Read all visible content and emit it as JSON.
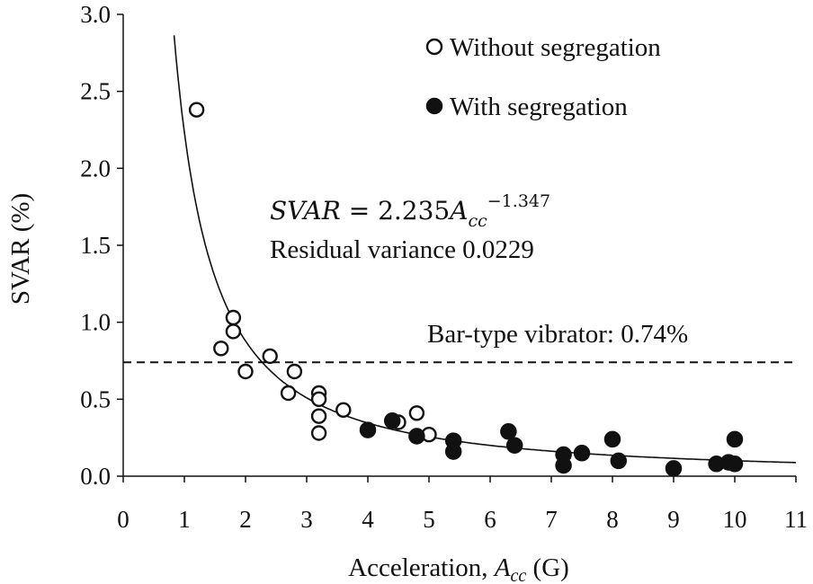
{
  "chart_data": {
    "type": "scatter",
    "xlabel": "Acceleration, ",
    "xlabel_symbol": "A",
    "xlabel_subscript": "cc",
    "xlabel_unit": " (G)",
    "ylabel": "SVAR (%)",
    "xlim": [
      0,
      11
    ],
    "ylim": [
      0,
      3.0
    ],
    "x_ticks": [
      "0",
      "1",
      "2",
      "3",
      "4",
      "5",
      "6",
      "7",
      "8",
      "9",
      "10",
      "11"
    ],
    "y_ticks": [
      "0.0",
      "0.5",
      "1.0",
      "1.5",
      "2.0",
      "2.5",
      "3.0"
    ],
    "grid": false,
    "legend_position": "top-right",
    "series": [
      {
        "name": "Without segregation",
        "marker": "open-circle",
        "points": [
          [
            1.2,
            2.38
          ],
          [
            1.6,
            0.83
          ],
          [
            1.8,
            1.03
          ],
          [
            1.8,
            0.94
          ],
          [
            2.0,
            0.68
          ],
          [
            2.4,
            0.78
          ],
          [
            2.7,
            0.54
          ],
          [
            2.8,
            0.68
          ],
          [
            3.2,
            0.54
          ],
          [
            3.2,
            0.5
          ],
          [
            3.2,
            0.39
          ],
          [
            3.2,
            0.28
          ],
          [
            3.6,
            0.43
          ],
          [
            4.5,
            0.35
          ],
          [
            4.8,
            0.41
          ],
          [
            5.0,
            0.27
          ]
        ]
      },
      {
        "name": "With segregation",
        "marker": "filled-circle",
        "points": [
          [
            4.0,
            0.3
          ],
          [
            4.4,
            0.36
          ],
          [
            4.8,
            0.26
          ],
          [
            5.4,
            0.23
          ],
          [
            5.4,
            0.16
          ],
          [
            6.3,
            0.29
          ],
          [
            6.4,
            0.2
          ],
          [
            7.2,
            0.14
          ],
          [
            7.2,
            0.07
          ],
          [
            7.5,
            0.15
          ],
          [
            8.0,
            0.24
          ],
          [
            8.1,
            0.1
          ],
          [
            9.0,
            0.05
          ],
          [
            9.7,
            0.08
          ],
          [
            9.9,
            0.09
          ],
          [
            10.0,
            0.08
          ],
          [
            10.0,
            0.24
          ]
        ]
      }
    ],
    "fit": {
      "coefficient": 2.235,
      "exponent": -1.347,
      "x_range": [
        0.8,
        11
      ]
    },
    "reference_line": {
      "y": 0.74,
      "style": "dashed",
      "label": "Bar-type vibrator: 0.74%"
    },
    "annotations": {
      "equation_lhs": "SVAR",
      "equation_eq": " = 2.235",
      "equation_var": "A",
      "equation_sub": "cc",
      "equation_exp": "−1.347",
      "residual": "Residual variance 0.0229"
    }
  }
}
